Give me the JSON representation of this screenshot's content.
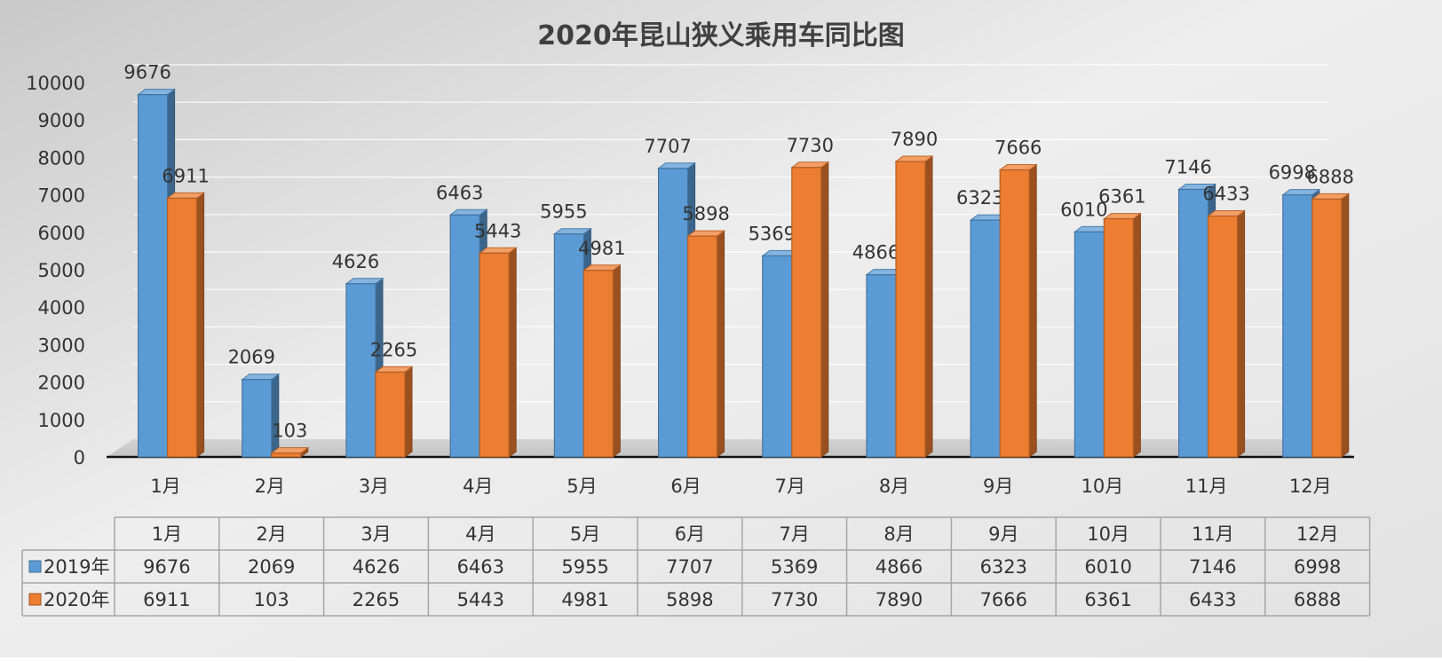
{
  "chart_data": {
    "type": "bar",
    "title": "2020年昆山狭义乘用车同比图",
    "categories": [
      "1月",
      "2月",
      "3月",
      "4月",
      "5月",
      "6月",
      "7月",
      "8月",
      "9月",
      "10月",
      "11月",
      "12月"
    ],
    "series": [
      {
        "name": "2019年",
        "color": "#5B9BD5",
        "values": [
          9676,
          2069,
          4626,
          6463,
          5955,
          7707,
          5369,
          4866,
          6323,
          6010,
          7146,
          6998
        ]
      },
      {
        "name": "2020年",
        "color": "#ED7D31",
        "values": [
          6911,
          103,
          2265,
          5443,
          4981,
          5898,
          7730,
          7890,
          7666,
          6361,
          6433,
          6888
        ]
      }
    ],
    "ylim": [
      0,
      10000
    ],
    "yticks": [
      0,
      1000,
      2000,
      3000,
      4000,
      5000,
      6000,
      7000,
      8000,
      9000,
      10000
    ],
    "grid": true,
    "legend": "data-table",
    "data_labels": true
  }
}
